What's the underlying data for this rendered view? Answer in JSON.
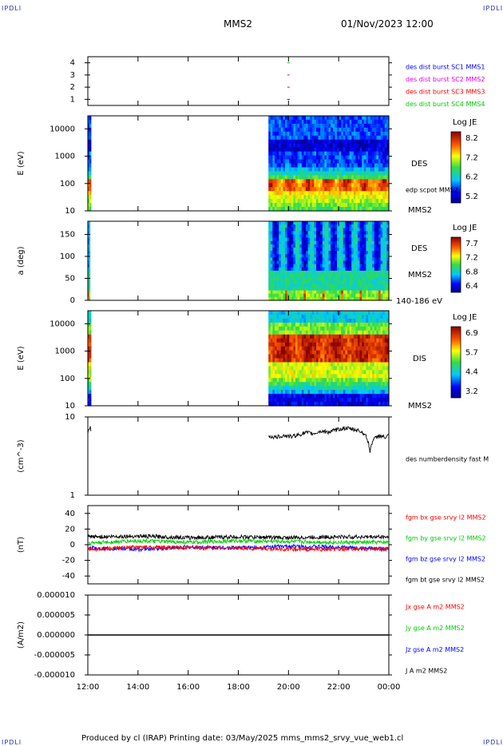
{
  "header": {
    "corner_tl": "IPDLI",
    "corner_tr": "IPDLI",
    "spacecraft": "MMS2",
    "datetime": "01/Nov/2023 12:00"
  },
  "footer": {
    "text": "Produced by cl (IRAP)   Printing date: 03/May/2025   mms_mms2_srvy_vue_web1.cl",
    "corner_bl": "IPDLI",
    "corner_br": "IPDLI"
  },
  "time_axis": {
    "start_hour": 12,
    "end_hour": 24,
    "ticks": [
      "12:00",
      "14:00",
      "16:00",
      "18:00",
      "20:00",
      "22:00",
      "00:00"
    ]
  },
  "colors": {
    "red": "#ff0000",
    "green": "#00cc00",
    "blue": "#0000ff",
    "magenta": "#dd00dd",
    "black": "#000000"
  },
  "chart_data": [
    {
      "id": "burst",
      "type": "scatter",
      "ylim": [
        0.5,
        4.5
      ],
      "yticks": [
        "4",
        "3",
        "2",
        "1"
      ],
      "legend": [
        {
          "label": "des dist burst SC1 MMS1",
          "color": "#0000ff"
        },
        {
          "label": "des dist burst SC2 MMS2",
          "color": "#dd00dd"
        },
        {
          "label": "des dist burst SC3 MMS3",
          "color": "#ff0000"
        },
        {
          "label": "des dist burst SC4 MMS4",
          "color": "#00cc00"
        }
      ],
      "points": [
        {
          "x": 20.0,
          "y": 4,
          "color": "#00cc00"
        },
        {
          "x": 20.0,
          "y": 3,
          "color": "#dd00dd"
        },
        {
          "x": 20.0,
          "y": 2,
          "color": "#ff0000"
        },
        {
          "x": 20.0,
          "y": 1,
          "color": "#0000ff"
        }
      ]
    },
    {
      "id": "des_energy",
      "type": "heatmap",
      "ylabel": "E (eV)",
      "yscale": "log",
      "ylim": [
        10,
        30000
      ],
      "yticks": [
        "10000",
        "1000",
        "100",
        "10"
      ],
      "right_labels": [
        "DES",
        "edp scpot MMS2",
        "MMS2"
      ],
      "colorbar": {
        "title": "Log JE",
        "ticks": [
          "8.2",
          "7.2",
          "6.2",
          "5.2"
        ]
      },
      "data_intervals": [
        [
          12.0,
          12.12
        ],
        [
          19.2,
          24.0
        ]
      ]
    },
    {
      "id": "des_pitch",
      "type": "heatmap",
      "ylabel": "a (deg)",
      "ylim": [
        0,
        180
      ],
      "yticks": [
        "150",
        "100",
        "50",
        "0"
      ],
      "right_labels": [
        "DES",
        "MMS2",
        "140-186 eV"
      ],
      "colorbar": {
        "title": "Log JE",
        "ticks": [
          "7.7",
          "7.2",
          "6.8",
          "6.4"
        ]
      },
      "data_intervals": [
        [
          12.0,
          12.08
        ],
        [
          19.2,
          24.0
        ]
      ]
    },
    {
      "id": "dis_energy",
      "type": "heatmap",
      "ylabel": "E (eV)",
      "yscale": "log",
      "ylim": [
        10,
        30000
      ],
      "yticks": [
        "10000",
        "1000",
        "100",
        "10"
      ],
      "right_labels": [
        "DIS",
        "MMS2"
      ],
      "colorbar": {
        "title": "Log JE",
        "ticks": [
          "6.9",
          "5.7",
          "4.4",
          "3.2"
        ]
      },
      "data_intervals": [
        [
          12.0,
          12.12
        ],
        [
          19.2,
          24.0
        ]
      ]
    },
    {
      "id": "density",
      "type": "line",
      "ylabel": "(cm^-3)",
      "yscale": "log",
      "ylim": [
        1,
        10
      ],
      "yticks": [
        "10",
        "1"
      ],
      "legend": [
        {
          "label": "des numberdensity fast M",
          "color": "#000000"
        }
      ],
      "series": [
        {
          "color": "#000000",
          "points": [
            [
              12.0,
              6.2
            ],
            [
              12.05,
              6.8
            ],
            [
              12.1,
              7.4
            ],
            [
              12.13,
              6.6
            ]
          ]
        },
        {
          "color": "#000000",
          "points": [
            [
              19.2,
              5.7
            ],
            [
              19.5,
              5.5
            ],
            [
              19.8,
              5.8
            ],
            [
              20.1,
              5.6
            ],
            [
              20.4,
              5.9
            ],
            [
              20.7,
              6.3
            ],
            [
              21.0,
              6.1
            ],
            [
              21.3,
              6.6
            ],
            [
              21.6,
              6.4
            ],
            [
              21.9,
              6.8
            ],
            [
              22.2,
              7.2
            ],
            [
              22.5,
              7.0
            ],
            [
              22.8,
              6.7
            ],
            [
              23.0,
              6.2
            ],
            [
              23.15,
              5.2
            ],
            [
              23.25,
              3.6
            ],
            [
              23.35,
              5.0
            ],
            [
              23.6,
              5.8
            ],
            [
              23.9,
              5.4
            ],
            [
              24.0,
              5.9
            ]
          ]
        }
      ]
    },
    {
      "id": "bfield",
      "type": "line",
      "ylabel": "(nT)",
      "ylim": [
        -50,
        50
      ],
      "yticks": [
        "40",
        "20",
        "0",
        "-20",
        "-40"
      ],
      "legend": [
        {
          "label": "fgm bx gse srvy l2 MMS2",
          "color": "#ff0000"
        },
        {
          "label": "fgm by gse srvy l2 MMS2",
          "color": "#00cc00"
        },
        {
          "label": "fgm bz gse srvy l2 MMS2",
          "color": "#0000ff"
        },
        {
          "label": "fgm bt gse srvy l2 MMS2",
          "color": "#000000"
        }
      ],
      "series": [
        {
          "color": "#000000",
          "points": [
            [
              12,
              10
            ],
            [
              14,
              11
            ],
            [
              16,
              9
            ],
            [
              18,
              10
            ],
            [
              20,
              9
            ],
            [
              22,
              10
            ],
            [
              24,
              10
            ]
          ]
        },
        {
          "color": "#00cc00",
          "points": [
            [
              12,
              2
            ],
            [
              14,
              5
            ],
            [
              16,
              3
            ],
            [
              18,
              5
            ],
            [
              20,
              4
            ],
            [
              22,
              3
            ],
            [
              24,
              3
            ]
          ]
        },
        {
          "color": "#0000ff",
          "points": [
            [
              12,
              -4
            ],
            [
              14,
              -6
            ],
            [
              16,
              -3
            ],
            [
              18,
              -4
            ],
            [
              20,
              -2
            ],
            [
              22,
              -3
            ],
            [
              24,
              -6
            ]
          ]
        },
        {
          "color": "#ff0000",
          "points": [
            [
              12,
              -6
            ],
            [
              14,
              -3
            ],
            [
              16,
              -4
            ],
            [
              18,
              -4
            ],
            [
              20,
              -6
            ],
            [
              22,
              -6
            ],
            [
              24,
              -5
            ]
          ]
        }
      ]
    },
    {
      "id": "current",
      "type": "line",
      "ylabel": "(A/m2)",
      "ylim": [
        -1e-05,
        1e-05
      ],
      "yticks": [
        "0.000010",
        "0.000005",
        "0.000000",
        "-0.000005",
        "-0.000010"
      ],
      "legend": [
        {
          "label": "Jx gse A m2 MMS2",
          "color": "#ff0000"
        },
        {
          "label": "Jy gse A m2 MMS2",
          "color": "#00cc00"
        },
        {
          "label": "Jz gse A m2 MMS2",
          "color": "#0000ff"
        },
        {
          "label": "J A m2 MMS2",
          "color": "#000000"
        }
      ],
      "series": [
        {
          "color": "#000000",
          "points": [
            [
              12,
              0
            ],
            [
              24,
              0
            ]
          ]
        }
      ]
    }
  ]
}
